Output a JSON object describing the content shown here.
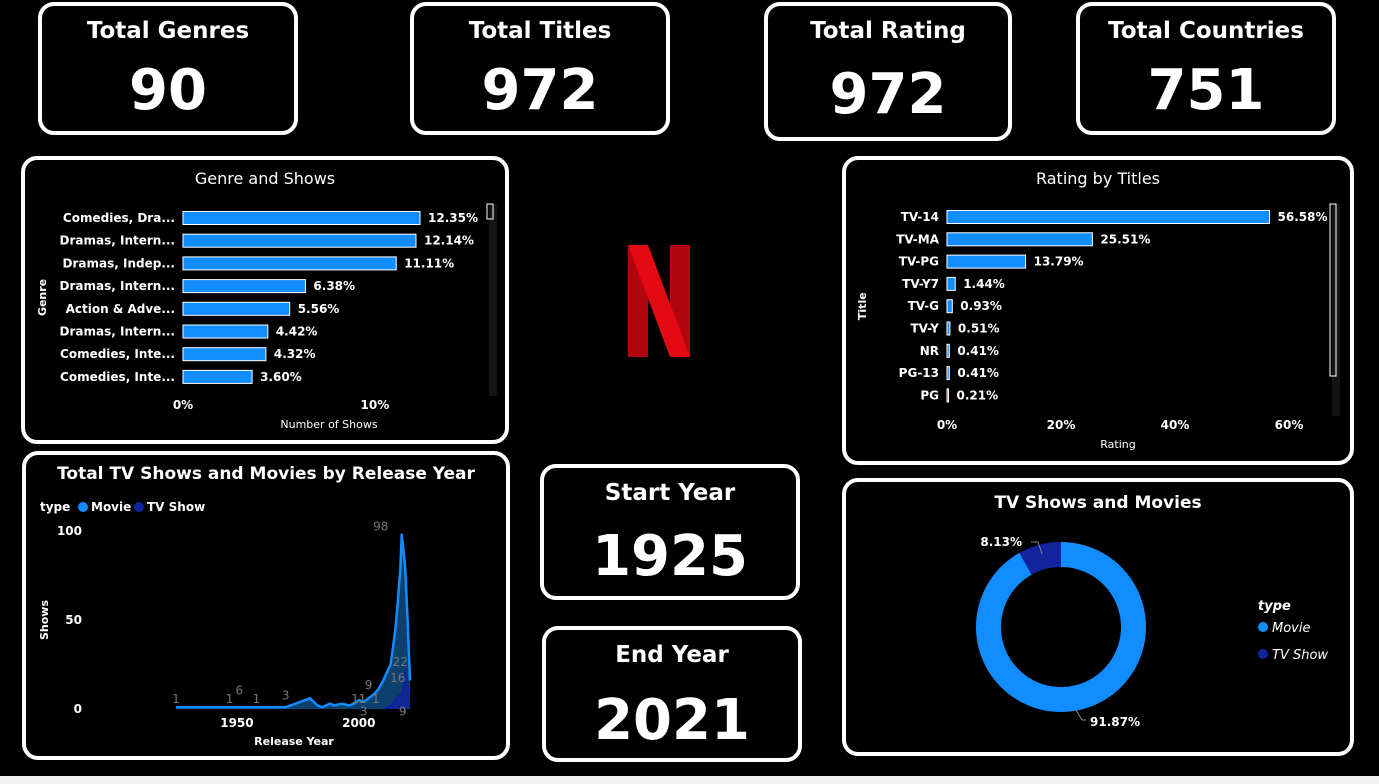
{
  "kpis": {
    "total_genres": {
      "label": "Total Genres",
      "value": "90"
    },
    "total_titles": {
      "label": "Total Titles",
      "value": "972"
    },
    "total_rating": {
      "label": "Total Rating",
      "value": "972"
    },
    "total_countries": {
      "label": "Total Countries",
      "value": "751"
    },
    "start_year": {
      "label": "Start Year",
      "value": "1925"
    },
    "end_year": {
      "label": "End Year",
      "value": "2021"
    }
  },
  "colors": {
    "movie": "#118DFF",
    "tv_show": "#12239E",
    "netflix_red": "#E50914"
  },
  "logo": {
    "letter": "N",
    "icon": "netflix-logo-icon"
  },
  "chart_data": [
    {
      "id": "genre",
      "type": "bar",
      "orientation": "horizontal",
      "title": "Genre and Shows",
      "xlabel": "Number of Shows",
      "ylabel": "Genre",
      "categories": [
        "Comedies, Dra...",
        "Dramas, Intern...",
        "Dramas, Indep...",
        "Dramas, Intern...",
        "Action & Adve...",
        "Dramas, Intern...",
        "Comedies, Inte...",
        "Comedies, Inte..."
      ],
      "values": [
        12.35,
        12.14,
        11.11,
        6.38,
        5.56,
        4.42,
        4.32,
        3.6
      ],
      "labels": [
        "12.35%",
        "12.14%",
        "11.11%",
        "6.38%",
        "5.56%",
        "4.42%",
        "4.32%",
        "3.60%"
      ],
      "xticks": [
        {
          "value": 0,
          "label": "0%"
        },
        {
          "value": 10,
          "label": "10%"
        }
      ]
    },
    {
      "id": "rating",
      "type": "bar",
      "orientation": "horizontal",
      "title": "Rating by Titles",
      "xlabel": "Rating",
      "ylabel": "Title",
      "categories": [
        "TV-14",
        "TV-MA",
        "TV-PG",
        "TV-Y7",
        "TV-G",
        "TV-Y",
        "NR",
        "PG-13",
        "PG"
      ],
      "values": [
        56.58,
        25.51,
        13.79,
        1.44,
        0.93,
        0.51,
        0.41,
        0.41,
        0.21
      ],
      "labels": [
        "56.58%",
        "25.51%",
        "13.79%",
        "1.44%",
        "0.93%",
        "0.51%",
        "0.41%",
        "0.41%",
        "0.21%"
      ],
      "xticks": [
        {
          "value": 0,
          "label": "0%"
        },
        {
          "value": 20,
          "label": "20%"
        },
        {
          "value": 40,
          "label": "40%"
        },
        {
          "value": 60,
          "label": "60%"
        }
      ]
    },
    {
      "id": "release",
      "type": "area",
      "title": "Total TV Shows and Movies by Release Year",
      "xlabel": "Release Year",
      "ylabel": "Shows",
      "legend_title": "type",
      "xlim": [
        1925,
        2021
      ],
      "ylim": [
        0,
        100
      ],
      "xticks": [
        {
          "value": 1950,
          "label": "1950"
        },
        {
          "value": 2000,
          "label": "2000"
        }
      ],
      "yticks": [
        {
          "value": 0,
          "label": "0"
        },
        {
          "value": 50,
          "label": "50"
        },
        {
          "value": 100,
          "label": "100"
        }
      ],
      "series": [
        {
          "name": "Movie",
          "x": [
            1925,
            1945,
            1960,
            1970,
            1978,
            1980,
            1983,
            1985,
            1988,
            1990,
            1993,
            1996,
            1998,
            2000,
            2002,
            2004,
            2006,
            2008,
            2010,
            2012,
            2013,
            2014,
            2015,
            2016,
            2017,
            2017.6,
            2018,
            2019,
            2020,
            2021
          ],
          "y": [
            1,
            1,
            1,
            1,
            5,
            6,
            2,
            1,
            3,
            2,
            3,
            2,
            3,
            5,
            4,
            6,
            8,
            11,
            16,
            22,
            25,
            34,
            45,
            60,
            78,
            98,
            93,
            80,
            50,
            16
          ]
        },
        {
          "name": "TV Show",
          "x": [
            2010,
            2012,
            2014,
            2016,
            2018,
            2019,
            2020,
            2021
          ],
          "y": [
            0,
            1,
            3,
            7,
            9,
            22,
            12,
            9
          ]
        }
      ],
      "annotations": [
        {
          "x": 1925,
          "y": 1,
          "label": "1"
        },
        {
          "x": 1947,
          "y": 1,
          "label": "1"
        },
        {
          "x": 1951,
          "y": 6,
          "label": "6"
        },
        {
          "x": 1958,
          "y": 1,
          "label": "1"
        },
        {
          "x": 1970,
          "y": 3,
          "label": "3"
        },
        {
          "x": 2009,
          "y": 98,
          "label": "98"
        },
        {
          "x": 2004,
          "y": 9,
          "label": "9"
        },
        {
          "x": 2000,
          "y": 1,
          "label": "11"
        },
        {
          "x": 2007,
          "y": 1,
          "label": "1"
        },
        {
          "x": 2002,
          "y": -6,
          "label": "3"
        },
        {
          "x": 2017,
          "y": 22,
          "label": "22"
        },
        {
          "x": 2016,
          "y": 13,
          "label": "16"
        },
        {
          "x": 2018,
          "y": -6,
          "label": "9"
        }
      ]
    },
    {
      "id": "type",
      "type": "pie",
      "donut": true,
      "title": "TV Shows and Movies",
      "legend_title": "type",
      "categories": [
        "Movie",
        "TV Show"
      ],
      "values": [
        91.87,
        8.13
      ],
      "labels": [
        "91.87%",
        "8.13%"
      ]
    }
  ]
}
